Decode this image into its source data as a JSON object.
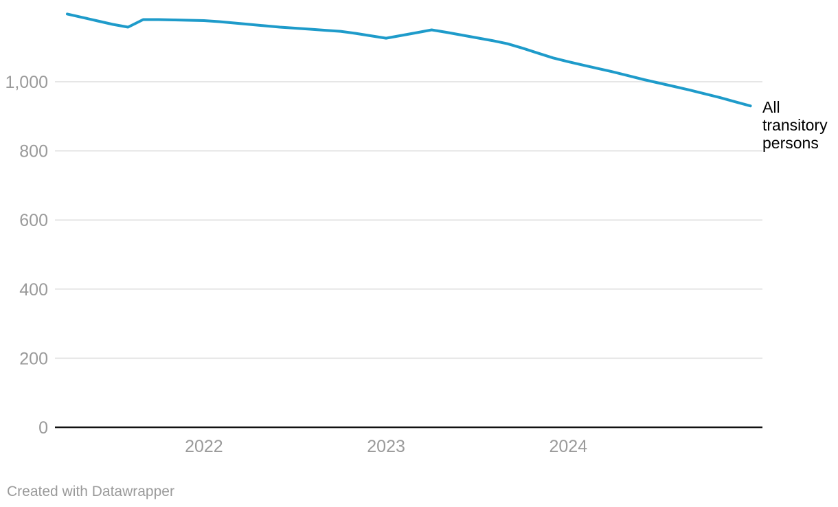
{
  "page": {
    "background": "#ffffff"
  },
  "chart_data": {
    "type": "line",
    "title": "",
    "series_label": "All transitory persons",
    "x": [
      "2021-10",
      "2021-11",
      "2021-12",
      "2022-01",
      "2022-02",
      "2022-03",
      "2022-04",
      "2022-05",
      "2022-06",
      "2022-07",
      "2022-08",
      "2022-09",
      "2022-10",
      "2022-11",
      "2022-12",
      "2023-01",
      "2023-02",
      "2023-03",
      "2023-04",
      "2023-05",
      "2023-06",
      "2023-07",
      "2023-08",
      "2023-09",
      "2023-10",
      "2023-11",
      "2023-12",
      "2024-01",
      "2024-02",
      "2024-03",
      "2024-04",
      "2024-05",
      "2024-06",
      "2024-07",
      "2024-08",
      "2024-09",
      "2024-10",
      "2024-11",
      "2024-12",
      "2025-01",
      "2025-02",
      "2025-03",
      "2025-04",
      "2025-05",
      "2025-06",
      "2025-07"
    ],
    "series": [
      {
        "name": "All transitory persons",
        "values": [
          1196,
          1186,
          1176,
          1166,
          1158,
          1180,
          1180,
          1179,
          1178,
          1177,
          1174,
          1170,
          1166,
          1162,
          1158,
          1155,
          1152,
          1149,
          1146,
          1140,
          1133,
          1126,
          1134,
          1142,
          1150,
          1143,
          1135,
          1127,
          1119,
          1110,
          1097,
          1083,
          1069,
          1058,
          1048,
          1038,
          1028,
          1017,
          1006,
          996,
          986,
          976,
          965,
          954,
          942,
          930
        ]
      }
    ],
    "xlabel": "",
    "ylabel": "",
    "ylim": [
      0,
      1240
    ],
    "grid": "horizontal",
    "legend_position": "direct-label-right",
    "yticks": [
      {
        "value": 0,
        "label": "0"
      },
      {
        "value": 200,
        "label": "200"
      },
      {
        "value": 400,
        "label": "400"
      },
      {
        "value": 600,
        "label": "600"
      },
      {
        "value": 800,
        "label": "800"
      },
      {
        "value": 1000,
        "label": "1,000"
      }
    ],
    "xticks": [
      {
        "label": "2022",
        "index": 9
      },
      {
        "label": "2023",
        "index": 21
      },
      {
        "label": "2024",
        "index": 33
      }
    ]
  },
  "colors": {
    "line": "#1e9bca",
    "grid": "#dedede",
    "axis": "#111111",
    "tick_label": "#9a9a9a",
    "series_label": "#000000",
    "credit": "#9a9a9a"
  },
  "footer": {
    "credit": "Created with Datawrapper"
  }
}
